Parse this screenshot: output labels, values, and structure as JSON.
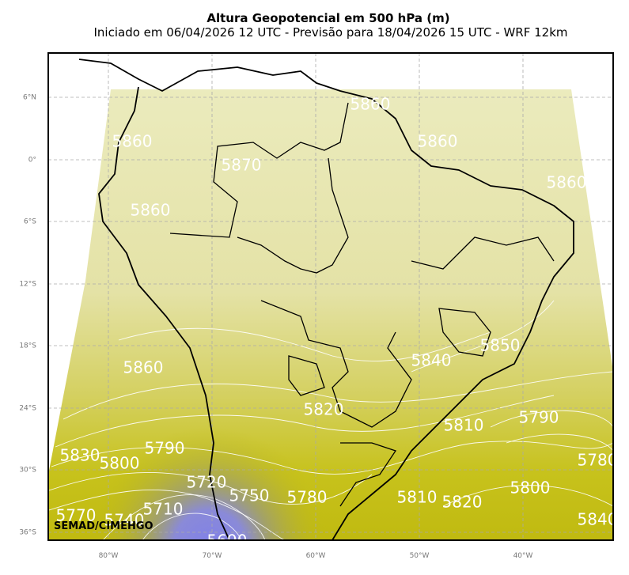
{
  "header": {
    "title": "Altura Geopotencial em 500 hPa (m)",
    "subtitle": "Iniciado em 06/04/2026 12 UTC - Previsão para 18/04/2026 15 UTC - WRF 12km"
  },
  "axes": {
    "lat_labels": [
      "6°N",
      "0°",
      "6°S",
      "12°S",
      "18°S",
      "24°S",
      "30°S",
      "36°S"
    ],
    "lon_labels": [
      "80°W",
      "70°W",
      "60°W",
      "50°W",
      "40°W"
    ]
  },
  "contour_labels": [
    "5860",
    "5860",
    "5870",
    "5860",
    "5860",
    "5860",
    "5860",
    "5850",
    "5840",
    "5820",
    "5810",
    "5790",
    "5830",
    "5800",
    "5790",
    "5780",
    "5720",
    "5750",
    "5780",
    "5810",
    "5820",
    "5800",
    "5770",
    "5740",
    "5710",
    "5690",
    "5840"
  ],
  "credit": "SEMAD/CIMEHGO"
}
